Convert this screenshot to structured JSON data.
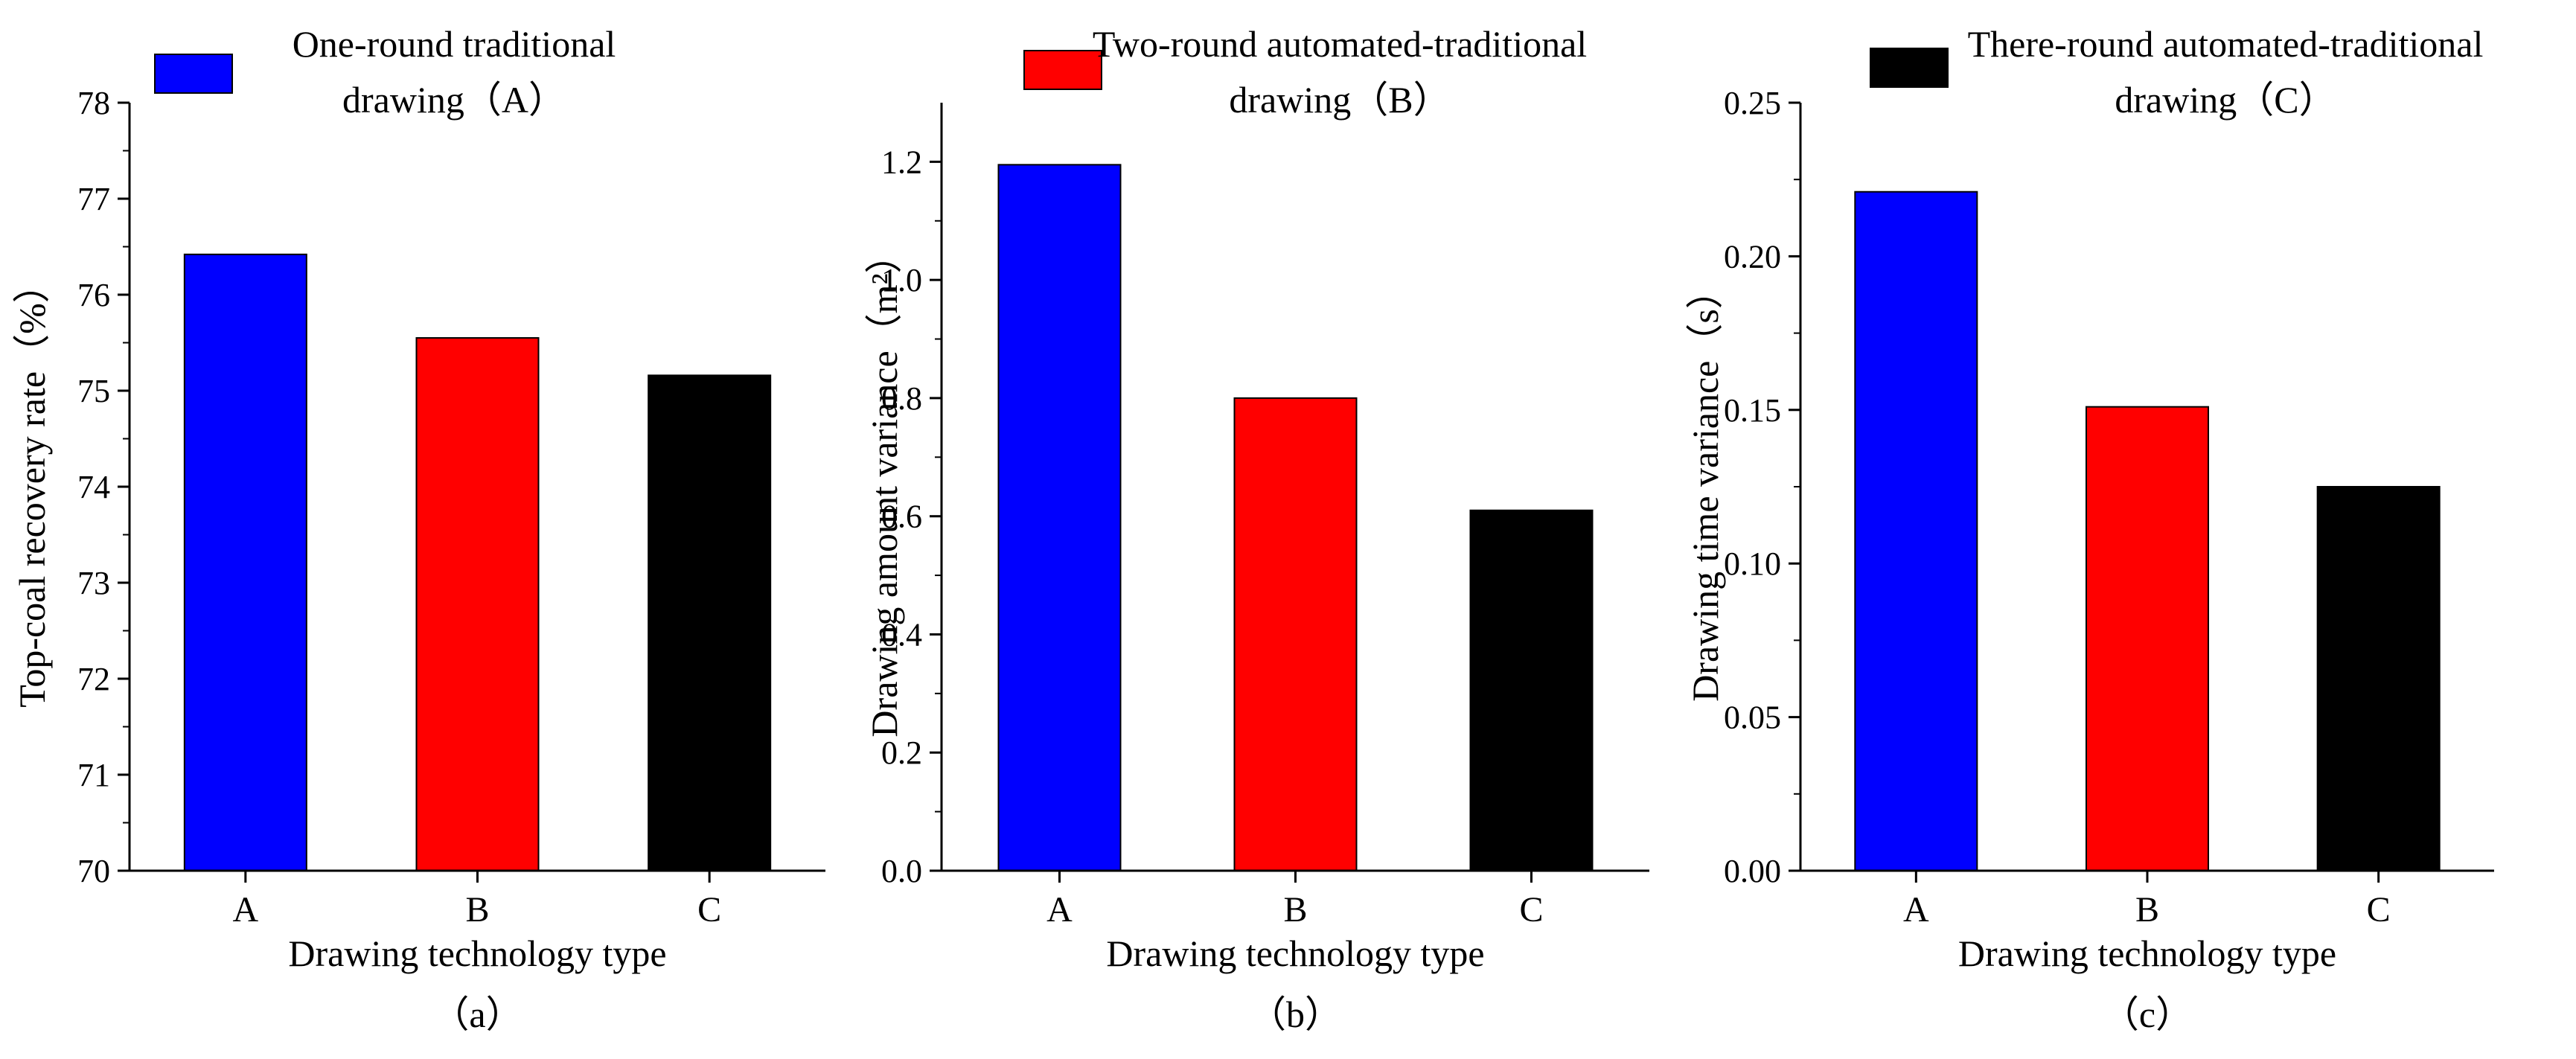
{
  "chart_data": [
    {
      "type": "bar",
      "panel_label": "（a）",
      "categories": [
        "A",
        "B",
        "C"
      ],
      "values": [
        76.42,
        75.55,
        75.16
      ],
      "colors": [
        "#0000FF",
        "#FF0000",
        "#000000"
      ],
      "xlabel": "Drawing technology type",
      "ylabel": "Top-coal recovery rate（%）",
      "ylim": [
        70,
        78
      ],
      "yticks": [
        "70",
        "71",
        "72",
        "73",
        "74",
        "75",
        "76",
        "77",
        "78"
      ],
      "legend": {
        "color": "#0000FF",
        "lines": [
          "One-round traditional",
          "drawing（A）"
        ],
        "placement": "top-left"
      }
    },
    {
      "type": "bar",
      "panel_label": "（b）",
      "categories": [
        "A",
        "B",
        "C"
      ],
      "values": [
        1.195,
        0.8,
        0.61
      ],
      "colors": [
        "#0000FF",
        "#FF0000",
        "#000000"
      ],
      "xlabel": "Drawing technology  type",
      "ylabel": "Drawing amount variance（m²）",
      "ylim": [
        0,
        1.3
      ],
      "yticks": [
        "0.0",
        "0.2",
        "0.4",
        "0.6",
        "0.8",
        "1.0",
        "1.2"
      ],
      "legend": {
        "color": "#FF0000",
        "lines": [
          "Two-round automated-traditional",
          "drawing（B）"
        ],
        "placement": "top-left"
      }
    },
    {
      "type": "bar",
      "panel_label": "（c）",
      "categories": [
        "A",
        "B",
        "C"
      ],
      "values": [
        0.221,
        0.151,
        0.125
      ],
      "colors": [
        "#0000FF",
        "#FF0000",
        "#000000"
      ],
      "xlabel": "Drawing technology  type",
      "ylabel": "Drawing time variance（s）",
      "ylim": [
        0,
        0.25
      ],
      "yticks": [
        "0.00",
        "0.05",
        "0.10",
        "0.15",
        "0.20",
        "0.25"
      ],
      "legend": {
        "color": "#000000",
        "lines": [
          "There-round automated-traditional",
          "drawing（C）"
        ],
        "placement": "top-left"
      }
    }
  ]
}
